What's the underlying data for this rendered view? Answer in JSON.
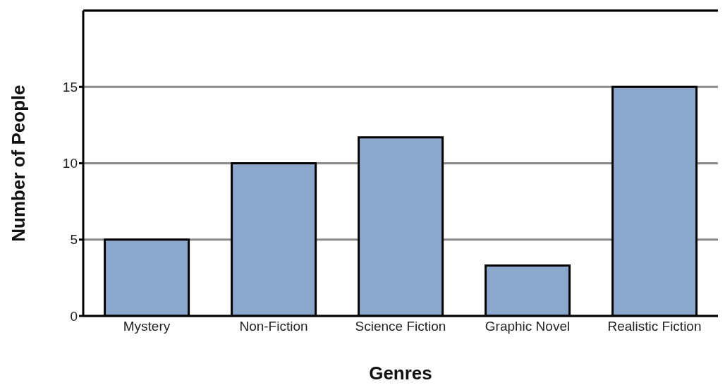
{
  "chart_data": {
    "type": "bar",
    "xlabel": "Genres",
    "ylabel": "Number of People",
    "categories": [
      "Mystery",
      "Non-Fiction",
      "Science Fiction",
      "Graphic Novel",
      "Realistic Fiction"
    ],
    "values": [
      5,
      10,
      11.7,
      3.3,
      15
    ],
    "color": "#8ba7cb",
    "ylim": [
      0,
      20
    ],
    "yticks": [
      0,
      5,
      10,
      15
    ],
    "grid": "y"
  }
}
